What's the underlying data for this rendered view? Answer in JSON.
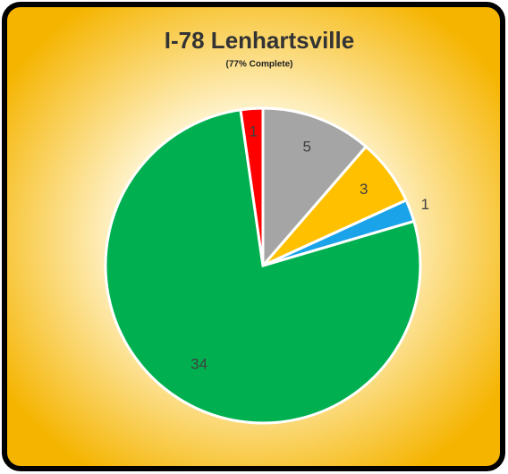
{
  "chart_data": {
    "type": "pie",
    "title": "I-78 Lenhartsville",
    "subtitle": "(77% Complete)",
    "values": [
      5,
      3,
      1,
      34,
      1
    ],
    "colors": [
      "#a5a5a5",
      "#ffc000",
      "#1aa3e8",
      "#00b050",
      "#ff0000"
    ]
  }
}
